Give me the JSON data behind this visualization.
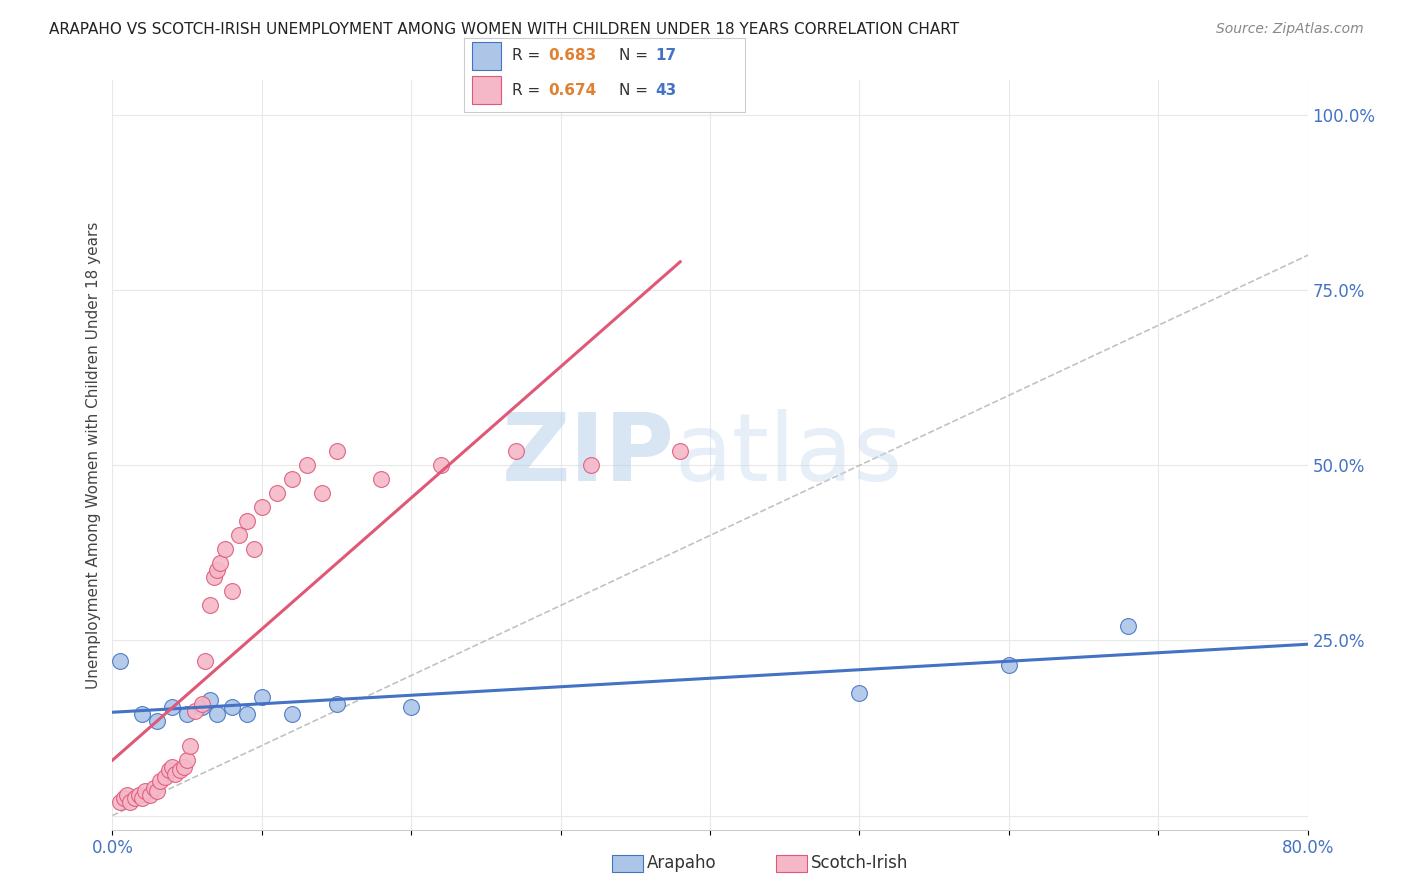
{
  "title": "ARAPAHO VS SCOTCH-IRISH UNEMPLOYMENT AMONG WOMEN WITH CHILDREN UNDER 18 YEARS CORRELATION CHART",
  "source": "Source: ZipAtlas.com",
  "ylabel": "Unemployment Among Women with Children Under 18 years",
  "xlim": [
    0.0,
    0.8
  ],
  "ylim": [
    -0.02,
    1.05
  ],
  "arapaho_color": "#adc6e8",
  "scotch_irish_color": "#f5b8c8",
  "arapaho_edge_color": "#4472c4",
  "scotch_irish_edge_color": "#e05878",
  "arapaho_line_color": "#4472c4",
  "scotch_irish_line_color": "#e05878",
  "arapaho_r": 0.683,
  "arapaho_n": 17,
  "scotch_irish_r": 0.674,
  "scotch_irish_n": 43,
  "watermark_zip": "ZIP",
  "watermark_atlas": "atlas",
  "grid_color": "#e8e8e8",
  "background_color": "#ffffff",
  "arapaho_x": [
    0.005,
    0.02,
    0.03,
    0.04,
    0.05,
    0.06,
    0.065,
    0.07,
    0.08,
    0.09,
    0.1,
    0.12,
    0.15,
    0.2,
    0.5,
    0.6,
    0.68
  ],
  "arapaho_y": [
    0.22,
    0.145,
    0.135,
    0.155,
    0.145,
    0.155,
    0.165,
    0.145,
    0.155,
    0.145,
    0.17,
    0.145,
    0.16,
    0.155,
    0.175,
    0.215,
    0.27
  ],
  "scotch_x": [
    0.005,
    0.008,
    0.01,
    0.012,
    0.015,
    0.018,
    0.02,
    0.022,
    0.025,
    0.028,
    0.03,
    0.032,
    0.035,
    0.038,
    0.04,
    0.042,
    0.045,
    0.048,
    0.05,
    0.052,
    0.055,
    0.06,
    0.062,
    0.065,
    0.068,
    0.07,
    0.072,
    0.075,
    0.08,
    0.085,
    0.09,
    0.095,
    0.1,
    0.11,
    0.12,
    0.13,
    0.14,
    0.15,
    0.18,
    0.22,
    0.27,
    0.32,
    0.38
  ],
  "scotch_y": [
    0.02,
    0.025,
    0.03,
    0.02,
    0.025,
    0.03,
    0.025,
    0.035,
    0.03,
    0.04,
    0.035,
    0.05,
    0.055,
    0.065,
    0.07,
    0.06,
    0.065,
    0.07,
    0.08,
    0.1,
    0.15,
    0.16,
    0.22,
    0.3,
    0.34,
    0.35,
    0.36,
    0.38,
    0.32,
    0.4,
    0.42,
    0.38,
    0.44,
    0.46,
    0.48,
    0.5,
    0.46,
    0.52,
    0.48,
    0.5,
    0.52,
    0.5,
    0.52
  ]
}
